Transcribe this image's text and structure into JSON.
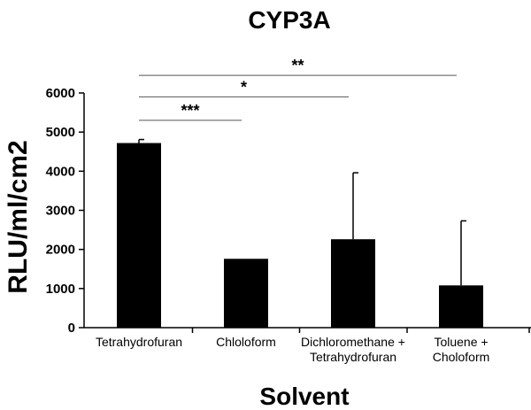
{
  "chart_data": {
    "type": "bar",
    "title": "CYP3A",
    "xlabel": "Solvent",
    "ylabel": "RLU/ml/cm2",
    "ylim": [
      0,
      6000
    ],
    "yticks": [
      "0",
      "1000",
      "2000",
      "3000",
      "4000",
      "5000",
      "6000"
    ],
    "categories": [
      [
        "Tetrahydrofuran"
      ],
      [
        "Chloloform"
      ],
      [
        "Dichloromethane +",
        "Tetrahydrofuran"
      ],
      [
        "Toluene +",
        "Choloform"
      ]
    ],
    "values": [
      4720,
      1760,
      2260,
      1080
    ],
    "errors": [
      90,
      0,
      1700,
      1650
    ],
    "significance": [
      {
        "from": 0,
        "to": 1,
        "label": "***",
        "level": 5300
      },
      {
        "from": 0,
        "to": 2,
        "label": "*",
        "level": 5900
      },
      {
        "from": 0,
        "to": 3,
        "label": "**",
        "level": 6450
      }
    ],
    "colors": {
      "bar": "#000000",
      "axis": "#000000",
      "bracket": "#555555"
    }
  }
}
